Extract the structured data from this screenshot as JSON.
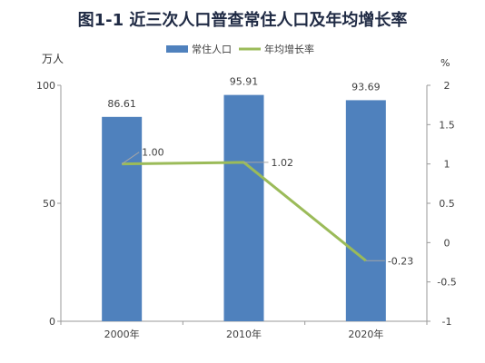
{
  "page": {
    "title": "图1-1  近三次人口普查常住人口及年均增长率"
  },
  "units": {
    "left": "万人",
    "right": "%"
  },
  "legend": {
    "items": [
      {
        "label": "常住人口",
        "color": "#4f81bd",
        "kind": "bar"
      },
      {
        "label": "年均增长率",
        "color": "#9bbb59",
        "kind": "line"
      }
    ]
  },
  "chart_data": {
    "type": "bar",
    "title": "图1-1  近三次人口普查常住人口及年均增长率",
    "categories": [
      "2000年",
      "2010年",
      "2020年"
    ],
    "series": [
      {
        "name": "常住人口",
        "type": "bar",
        "axis": "left",
        "color": "#4f81bd",
        "values": [
          86.61,
          95.91,
          93.69
        ],
        "labels": [
          "86.61",
          "95.91",
          "93.69"
        ]
      },
      {
        "name": "年均增长率",
        "type": "line",
        "axis": "right",
        "color": "#9bbb59",
        "values": [
          1.0,
          1.02,
          -0.23
        ],
        "labels": [
          "1.00",
          "1.02",
          "-0.23"
        ]
      }
    ],
    "ylabel": "万人",
    "ylabel_right": "%",
    "ylim": [
      0,
      100
    ],
    "ylim_right": [
      -1,
      2
    ],
    "yticks": [
      "0",
      "50",
      "100"
    ],
    "yticks_right": [
      "-1",
      "-0.5",
      "0",
      "0.5",
      "1",
      "1.5",
      "2"
    ],
    "grid": false,
    "legend_position": "top"
  }
}
